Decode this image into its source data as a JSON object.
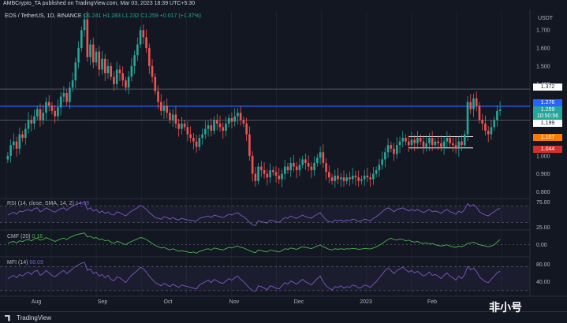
{
  "header": {
    "publisher": "AMBCrypto_TA published on TradingView.com, Mar 03, 2023 18:39 UTC+5:30"
  },
  "legend": {
    "symbol": "EOS / TetherUS, 1D, BINANCE",
    "ohlc": "O1.241 H1.283 L1.232 C1.259",
    "change": "+0.017 (+1.37%)"
  },
  "price_axis": {
    "currency": "USDT",
    "ticks": [
      "1.700",
      "1.600",
      "1.500",
      "1.400",
      "1.000",
      "0.900",
      "0.800"
    ]
  },
  "price_badges": {
    "level_1372": "1.372",
    "level_1276": "1.276",
    "current_price": "1.259",
    "countdown": "10:50:56",
    "level_1199": "1.199",
    "level_1107": "1.107",
    "level_1044": "1.044"
  },
  "indicators": {
    "rsi": {
      "label": "RSI (14, close, SMA, 14, 2)",
      "value": "64.36",
      "ticks": [
        "75.00",
        "25.00"
      ]
    },
    "cmf": {
      "label": "CMF (20)",
      "value": "0.16",
      "ticks": [
        "0.00"
      ]
    },
    "mfi": {
      "label": "MFI (14)",
      "value": "68.09",
      "ticks": [
        "80.00",
        "40.00"
      ]
    }
  },
  "time_axis": [
    "Aug",
    "Sep",
    "Oct",
    "Nov",
    "Dec",
    "2023",
    "Feb"
  ],
  "footer": {
    "brand": "TradingView",
    "watermark": "非小号"
  },
  "colors": {
    "background": "#131722",
    "up": "#26a69a",
    "down": "#ef5350",
    "blue_line": "#2962ff",
    "oscillator": "#7e57c2",
    "cmf": "#4caf50",
    "level_orange": "#f57c00",
    "level_red": "#d32f2f"
  },
  "chart_data": {
    "type": "candlestick",
    "title": "EOS / TetherUS, 1D, BINANCE",
    "y_unit": "USDT",
    "ylim": [
      0.78,
      1.78
    ],
    "horizontal_levels": [
      1.372,
      1.276,
      1.199,
      1.107,
      1.044
    ],
    "x_labels": [
      "Aug",
      "Sep",
      "Oct",
      "Nov",
      "Dec",
      "2023",
      "Feb"
    ],
    "close_path": [
      1.0,
      1.06,
      1.08,
      1.04,
      1.12,
      1.1,
      1.15,
      1.2,
      1.18,
      1.22,
      1.26,
      1.2,
      1.24,
      1.3,
      1.28,
      1.25,
      1.22,
      1.27,
      1.33,
      1.35,
      1.3,
      1.38,
      1.42,
      1.52,
      1.6,
      1.7,
      1.76,
      1.55,
      1.62,
      1.52,
      1.58,
      1.48,
      1.54,
      1.46,
      1.5,
      1.44,
      1.4,
      1.48,
      1.46,
      1.42,
      1.38,
      1.44,
      1.5,
      1.56,
      1.62,
      1.7,
      1.66,
      1.6,
      1.5,
      1.44,
      1.36,
      1.3,
      1.25,
      1.28,
      1.24,
      1.2,
      1.23,
      1.18,
      1.15,
      1.18,
      1.16,
      1.12,
      1.1,
      1.08,
      1.05,
      1.1,
      1.12,
      1.15,
      1.17,
      1.14,
      1.2,
      1.18,
      1.16,
      1.14,
      1.18,
      1.21,
      1.19,
      1.22,
      1.24,
      1.2,
      1.18,
      1.12,
      1.0,
      0.9,
      0.86,
      0.94,
      0.92,
      0.9,
      0.88,
      0.92,
      0.91,
      0.89,
      0.87,
      0.9,
      0.94,
      0.92,
      0.96,
      0.94,
      0.92,
      0.95,
      0.98,
      0.96,
      0.94,
      0.92,
      0.96,
      0.99,
      1.02,
      0.96,
      0.91,
      0.88,
      0.86,
      0.89,
      0.87,
      0.88,
      0.86,
      0.88,
      0.87,
      0.89,
      0.88,
      0.86,
      0.87,
      0.89,
      0.88,
      0.87,
      0.9,
      0.92,
      0.95,
      0.98,
      1.02,
      1.06,
      1.04,
      1.01,
      1.06,
      1.08,
      1.1,
      1.08,
      1.06,
      1.09,
      1.07,
      1.1,
      1.08,
      1.05,
      1.07,
      1.1,
      1.06,
      1.08,
      1.07,
      1.05,
      1.08,
      1.1,
      1.07,
      1.06,
      1.04,
      1.08,
      1.06,
      1.12,
      1.3,
      1.26,
      1.32,
      1.28,
      1.2,
      1.18,
      1.14,
      1.12,
      1.16,
      1.2,
      1.25,
      1.259
    ],
    "rsi_series": [
      48,
      52,
      55,
      50,
      58,
      56,
      60,
      62,
      58,
      64,
      66,
      56,
      60,
      66,
      62,
      58,
      55,
      60,
      64,
      66,
      60,
      66,
      70,
      74,
      76,
      78,
      80,
      62,
      66,
      58,
      62,
      54,
      58,
      52,
      56,
      50,
      48,
      56,
      54,
      50,
      46,
      52,
      58,
      62,
      66,
      72,
      68,
      62,
      54,
      48,
      42,
      40,
      38,
      44,
      42,
      38,
      42,
      38,
      36,
      40,
      38,
      36,
      35,
      34,
      33,
      40,
      42,
      44,
      46,
      42,
      48,
      46,
      44,
      42,
      46,
      50,
      48,
      52,
      54,
      48,
      44,
      38,
      30,
      24,
      22,
      34,
      32,
      30,
      28,
      36,
      34,
      32,
      30,
      36,
      42,
      40,
      46,
      42,
      40,
      44,
      48,
      44,
      42,
      40,
      46,
      50,
      54,
      44,
      36,
      32,
      30,
      36,
      34,
      36,
      32,
      36,
      34,
      38,
      36,
      32,
      34,
      38,
      36,
      34,
      40,
      44,
      50,
      56,
      62,
      66,
      62,
      56,
      62,
      64,
      66,
      62,
      58,
      62,
      58,
      62,
      58,
      54,
      58,
      62,
      56,
      58,
      56,
      52,
      58,
      62,
      56,
      54,
      50,
      58,
      54,
      62,
      76,
      70,
      74,
      68,
      56,
      52,
      48,
      46,
      52,
      56,
      62,
      64.36
    ],
    "cmf_series": [
      0.05,
      0.08,
      0.1,
      0.06,
      0.12,
      0.1,
      0.14,
      0.16,
      0.12,
      0.18,
      0.2,
      0.14,
      0.16,
      0.22,
      0.18,
      0.14,
      0.1,
      0.14,
      0.18,
      0.2,
      0.16,
      0.22,
      0.26,
      0.3,
      0.32,
      0.34,
      0.36,
      0.24,
      0.26,
      0.2,
      0.22,
      0.16,
      0.18,
      0.12,
      0.14,
      0.08,
      0.04,
      0.1,
      0.08,
      0.04,
      0.0,
      0.06,
      0.1,
      0.14,
      0.18,
      0.22,
      0.2,
      0.16,
      0.1,
      0.04,
      -0.02,
      -0.06,
      -0.1,
      -0.08,
      -0.12,
      -0.16,
      -0.12,
      -0.16,
      -0.2,
      -0.18,
      -0.2,
      -0.22,
      -0.24,
      -0.22,
      -0.26,
      -0.2,
      -0.18,
      -0.14,
      -0.12,
      -0.16,
      -0.1,
      -0.12,
      -0.14,
      -0.16,
      -0.12,
      -0.08,
      -0.1,
      -0.06,
      -0.04,
      -0.08,
      -0.1,
      -0.14,
      -0.18,
      -0.22,
      -0.24,
      -0.16,
      -0.18,
      -0.2,
      -0.22,
      -0.16,
      -0.18,
      -0.2,
      -0.22,
      -0.18,
      -0.12,
      -0.14,
      -0.1,
      -0.12,
      -0.14,
      -0.1,
      -0.06,
      -0.08,
      -0.1,
      -0.12,
      -0.08,
      -0.04,
      0.0,
      -0.06,
      -0.1,
      -0.14,
      -0.16,
      -0.12,
      -0.14,
      -0.12,
      -0.14,
      -0.12,
      -0.13,
      -0.11,
      -0.12,
      -0.14,
      -0.13,
      -0.11,
      -0.12,
      -0.13,
      -0.1,
      -0.06,
      -0.02,
      0.04,
      0.1,
      0.16,
      0.2,
      0.16,
      0.14,
      0.18,
      0.16,
      0.12,
      0.14,
      0.1,
      0.08,
      0.1,
      0.06,
      0.04,
      0.06,
      0.02,
      0.04,
      0.0,
      -0.02,
      -0.04,
      -0.02,
      0.0,
      -0.04,
      -0.06,
      -0.08,
      -0.04,
      -0.06,
      -0.02,
      0.04,
      0.06,
      0.08,
      0.04,
      0.0,
      -0.02,
      -0.04,
      -0.06,
      -0.04,
      0.0,
      0.08,
      0.16
    ],
    "mfi_series": [
      50,
      54,
      58,
      52,
      60,
      56,
      62,
      66,
      60,
      68,
      70,
      58,
      62,
      70,
      64,
      58,
      54,
      60,
      66,
      70,
      62,
      68,
      74,
      80,
      84,
      88,
      90,
      70,
      74,
      62,
      66,
      56,
      60,
      52,
      58,
      48,
      44,
      54,
      52,
      46,
      40,
      50,
      58,
      64,
      70,
      78,
      74,
      66,
      56,
      48,
      40,
      36,
      32,
      38,
      34,
      30,
      36,
      32,
      28,
      34,
      32,
      30,
      28,
      26,
      24,
      34,
      38,
      42,
      46,
      40,
      48,
      44,
      40,
      38,
      44,
      50,
      46,
      52,
      56,
      48,
      42,
      34,
      26,
      20,
      18,
      32,
      30,
      26,
      22,
      32,
      30,
      26,
      24,
      32,
      40,
      36,
      44,
      40,
      36,
      42,
      48,
      42,
      38,
      34,
      42,
      50,
      56,
      42,
      32,
      26,
      22,
      30,
      28,
      32,
      26,
      30,
      28,
      34,
      32,
      26,
      28,
      34,
      32,
      28,
      36,
      42,
      52,
      60,
      70,
      76,
      70,
      62,
      70,
      74,
      78,
      72,
      66,
      70,
      64,
      68,
      62,
      56,
      60,
      66,
      58,
      60,
      56,
      50,
      58,
      64,
      56,
      52,
      46,
      56,
      50,
      60,
      80,
      72,
      76,
      68,
      54,
      48,
      42,
      40,
      48,
      56,
      64,
      68.09
    ]
  }
}
